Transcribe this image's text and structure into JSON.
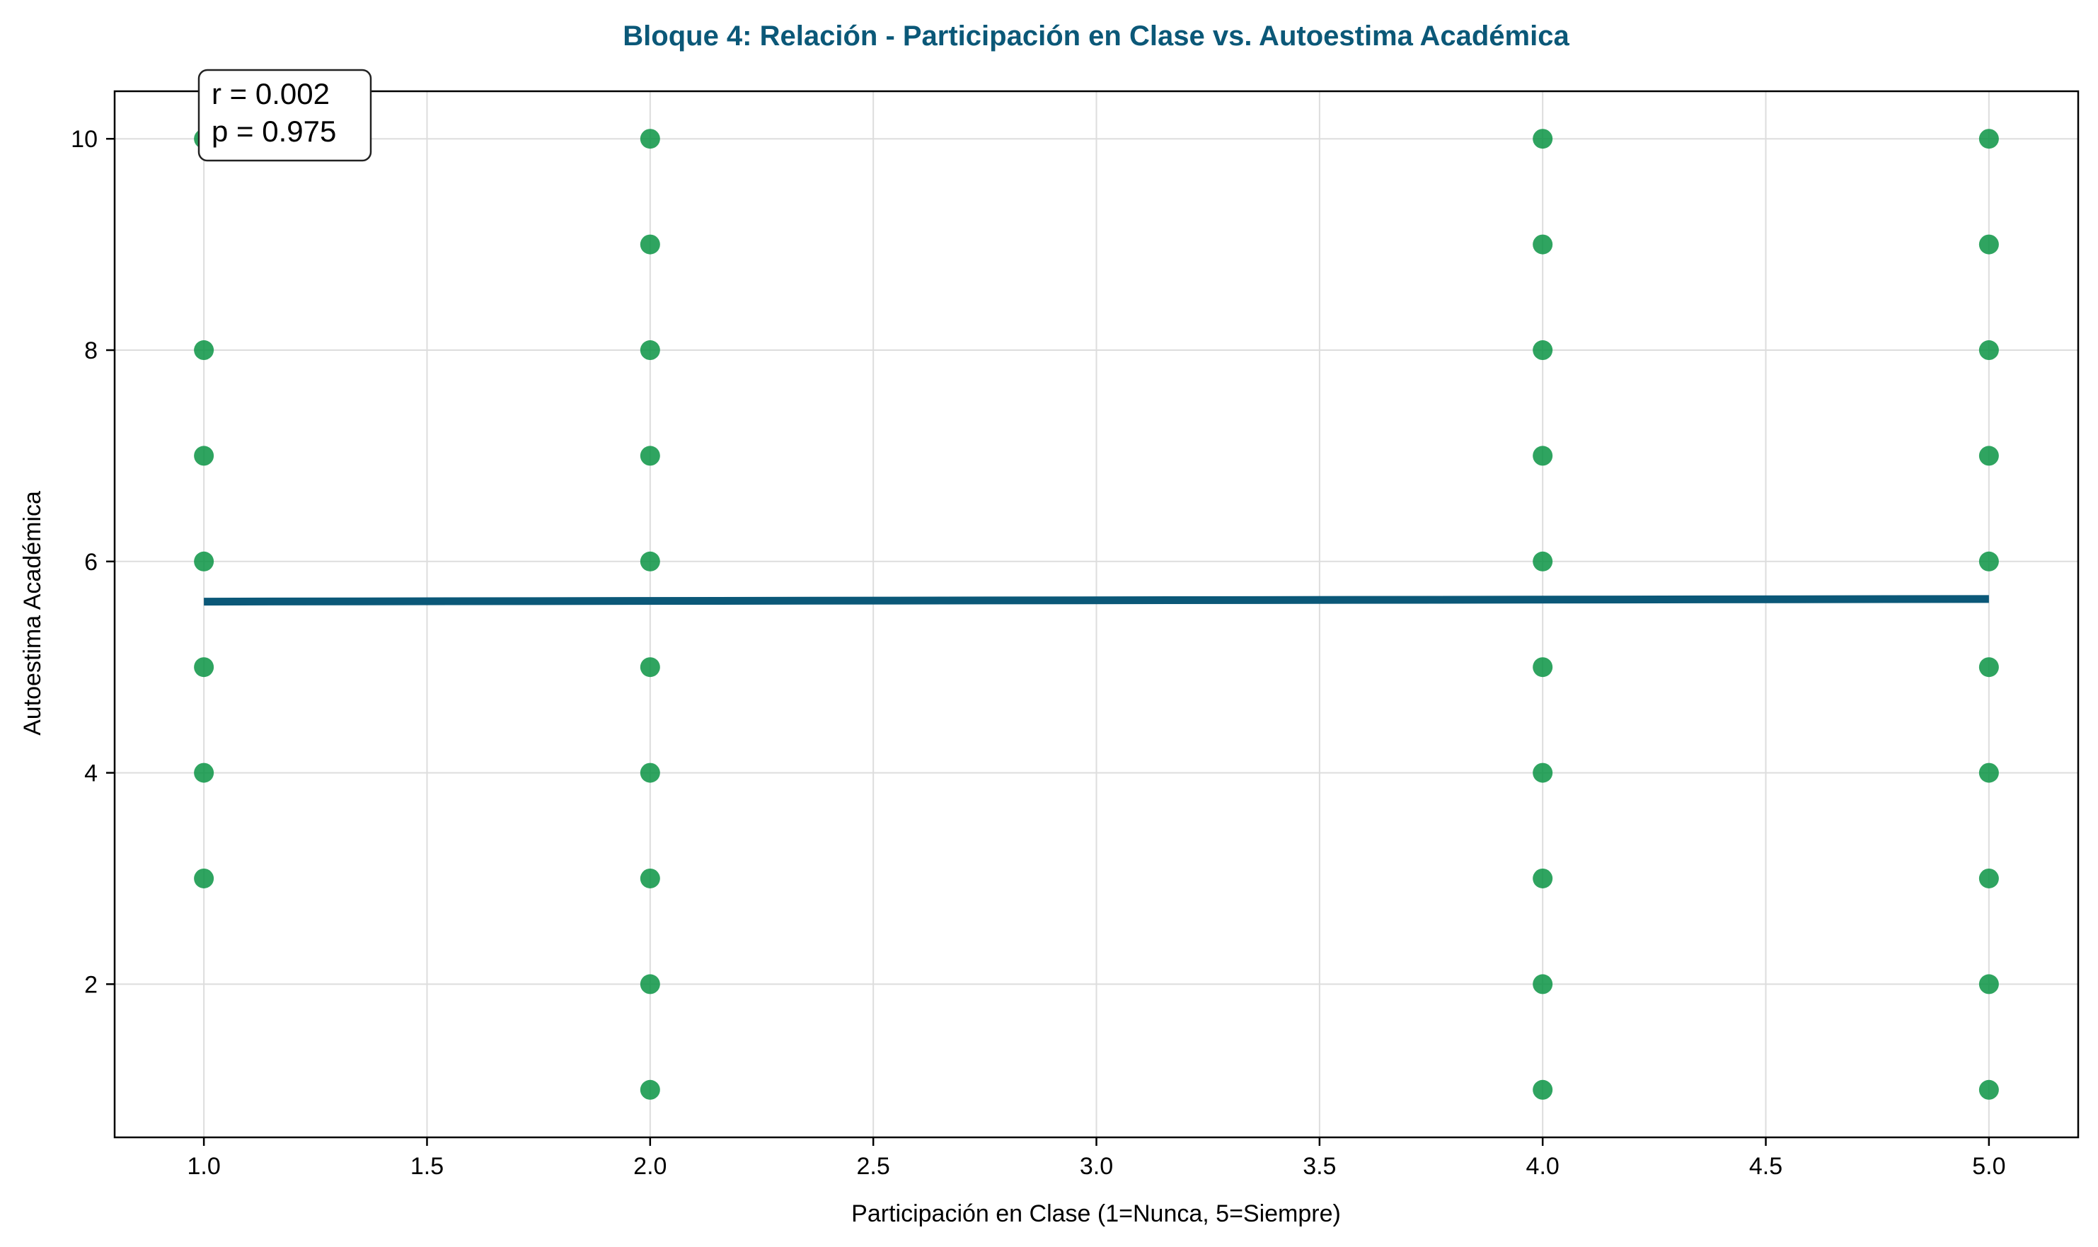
{
  "chart_data": {
    "type": "scatter",
    "title": "Bloque 4: Relación - Participación en Clase vs. Autoestima Académica",
    "xlabel": "Participación en Clase (1=Nunca, 5=Siempre)",
    "ylabel": "Autoestima Académica",
    "xlim": [
      0.8,
      5.2
    ],
    "ylim": [
      0.55,
      10.45
    ],
    "grid": true,
    "x_ticks": [
      "1.0",
      "1.5",
      "2.0",
      "2.5",
      "3.0",
      "3.5",
      "4.0",
      "4.5",
      "5.0"
    ],
    "y_ticks": [
      "2",
      "4",
      "6",
      "8",
      "10"
    ],
    "series": [
      {
        "color": "#0a9444",
        "points": [
          [
            1,
            10
          ],
          [
            1,
            8
          ],
          [
            1,
            7
          ],
          [
            1,
            6
          ],
          [
            1,
            5
          ],
          [
            1,
            4
          ],
          [
            1,
            3
          ],
          [
            2,
            10
          ],
          [
            2,
            9
          ],
          [
            2,
            8
          ],
          [
            2,
            7
          ],
          [
            2,
            6
          ],
          [
            2,
            5
          ],
          [
            2,
            4
          ],
          [
            2,
            3
          ],
          [
            2,
            2
          ],
          [
            2,
            1
          ],
          [
            4,
            10
          ],
          [
            4,
            9
          ],
          [
            4,
            8
          ],
          [
            4,
            7
          ],
          [
            4,
            6
          ],
          [
            4,
            5
          ],
          [
            4,
            4
          ],
          [
            4,
            3
          ],
          [
            4,
            2
          ],
          [
            4,
            1
          ],
          [
            5,
            10
          ],
          [
            5,
            9
          ],
          [
            5,
            8
          ],
          [
            5,
            7
          ],
          [
            5,
            6
          ],
          [
            5,
            5
          ],
          [
            5,
            4
          ],
          [
            5,
            3
          ],
          [
            5,
            2
          ],
          [
            5,
            1
          ]
        ]
      }
    ],
    "trend_line": {
      "color": "#0b5878",
      "x": [
        1,
        5
      ],
      "y": [
        5.62,
        5.645
      ]
    },
    "annotation": {
      "lines": [
        "r = 0.002",
        "p = 0.975"
      ],
      "placement": "top-left"
    },
    "title_color": "#0b5878"
  }
}
